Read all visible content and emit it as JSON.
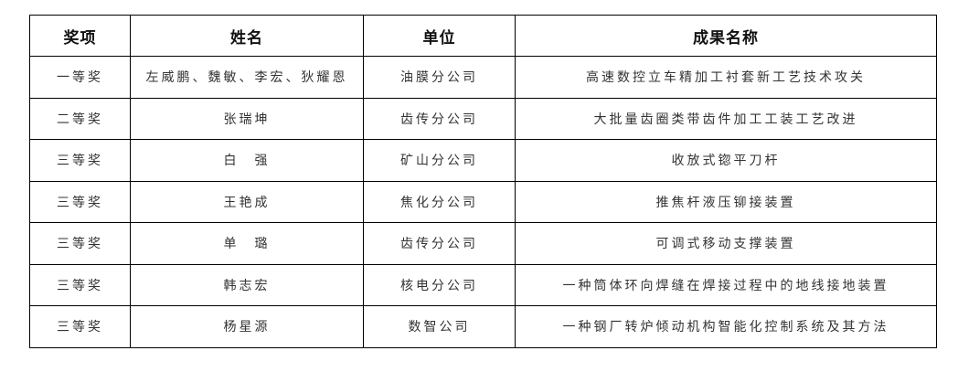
{
  "table": {
    "headers": [
      "奖项",
      "姓名",
      "单位",
      "成果名称"
    ],
    "rows": [
      [
        "一等奖",
        "左威鹏、魏敏、李宏、狄耀恩",
        "油膜分公司",
        "高速数控立车精加工衬套新工艺技术攻关"
      ],
      [
        "二等奖",
        "张瑞坤",
        "齿传分公司",
        "大批量齿圈类带齿件加工工装工艺改进"
      ],
      [
        "三等奖",
        "白　强",
        "矿山分公司",
        "收放式锪平刀杆"
      ],
      [
        "三等奖",
        "王艳成",
        "焦化分公司",
        "推焦杆液压铆接装置"
      ],
      [
        "三等奖",
        "单　璐",
        "齿传分公司",
        "可调式移动支撑装置"
      ],
      [
        "三等奖",
        "韩志宏",
        "核电分公司",
        "一种筒体环向焊缝在焊接过程中的地线接地装置"
      ],
      [
        "三等奖",
        "杨星源",
        "数智公司",
        "一种钢厂转炉倾动机构智能化控制系统及其方法"
      ]
    ]
  }
}
